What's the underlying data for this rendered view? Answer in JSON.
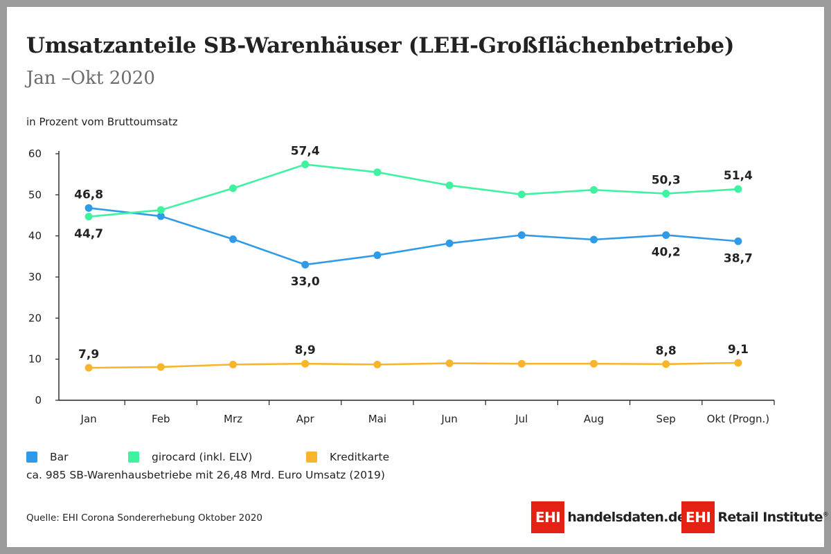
{
  "title": "Umsatzanteile SB-Warenhäuser (LEH-Großflächenbetriebe)",
  "subtitle": "Jan –Okt 2020",
  "unit_label": "in Prozent vom Bruttoumsatz",
  "note": "ca. 985 SB-Warenhausbetriebe mit 26,48 Mrd. Euro Umsatz (2019)",
  "source": "Quelle: EHI Corona Sondererhebung Oktober 2020",
  "logos": {
    "ehi_box": "EHI",
    "handelsdaten": "handelsdaten.de",
    "retail_institute": "Retail Institute",
    "reg_mark": "®",
    "brand_color": "#e32214"
  },
  "chart_data": {
    "type": "line",
    "title": "Umsatzanteile SB-Warenhäuser (LEH-Großflächenbetriebe)",
    "subtitle": "Jan –Okt 2020",
    "ylabel": "in Prozent vom Bruttoumsatz",
    "xlabel": "",
    "ylim": [
      0,
      60
    ],
    "yticks": [
      0,
      10,
      20,
      30,
      40,
      50,
      60
    ],
    "grid": false,
    "legend_position": "bottom-left",
    "categories": [
      "Jan",
      "Feb",
      "Mrz",
      "Apr",
      "Mai",
      "Jun",
      "Jul",
      "Aug",
      "Sep",
      "Okt (Progn.)"
    ],
    "series": [
      {
        "name": "Bar",
        "color": "#2f9be8",
        "values": [
          46.8,
          44.8,
          39.2,
          33.0,
          35.3,
          38.2,
          40.2,
          39.1,
          40.2,
          38.7
        ],
        "labels": [
          "46,8",
          null,
          null,
          "33,0",
          null,
          null,
          null,
          null,
          "40,2",
          "38,7"
        ],
        "label_side": [
          "above",
          null,
          null,
          "below",
          null,
          null,
          null,
          null,
          "below",
          "below"
        ]
      },
      {
        "name": "girocard (inkl. ELV)",
        "color": "#3ef2a0",
        "values": [
          44.7,
          46.3,
          51.6,
          57.4,
          55.5,
          52.3,
          50.1,
          51.2,
          50.3,
          51.4
        ],
        "labels": [
          "44,7",
          null,
          null,
          "57,4",
          null,
          null,
          null,
          null,
          "50,3",
          "51,4"
        ],
        "label_side": [
          "below",
          null,
          null,
          "above",
          null,
          null,
          null,
          null,
          "above",
          "above"
        ]
      },
      {
        "name": "Kreditkarte",
        "color": "#f7b52c",
        "values": [
          7.9,
          8.1,
          8.7,
          8.9,
          8.7,
          9.0,
          8.9,
          8.9,
          8.8,
          9.1
        ],
        "labels": [
          "7,9",
          null,
          null,
          "8,9",
          null,
          null,
          null,
          null,
          "8,8",
          "9,1"
        ],
        "label_side": [
          "above",
          null,
          null,
          "above",
          null,
          null,
          null,
          null,
          "above",
          "above"
        ]
      }
    ]
  }
}
